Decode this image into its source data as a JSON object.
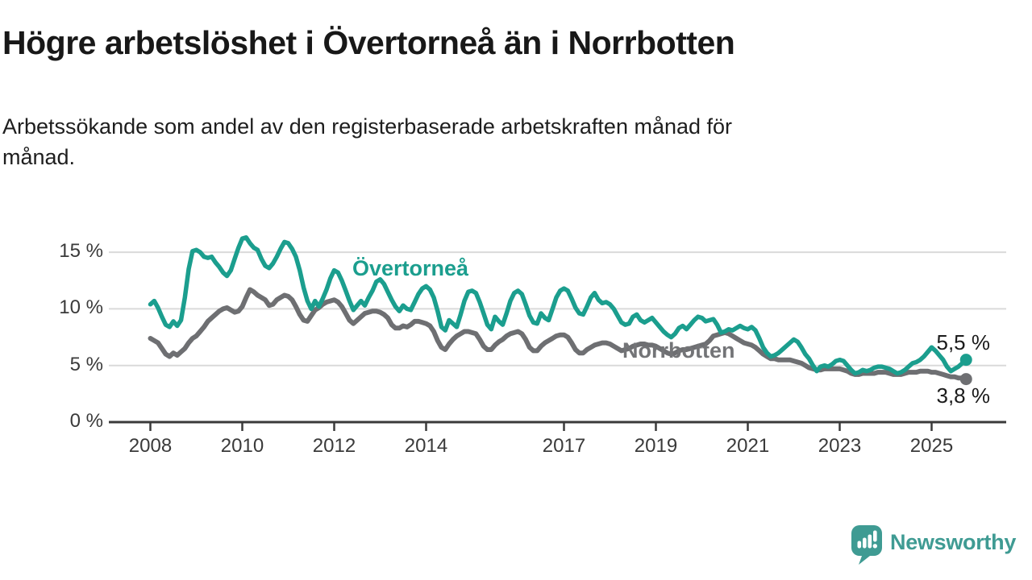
{
  "header": {
    "title": "Högre arbetslöshet i Övertorneå än i Norrbotten",
    "subtitle": "Arbetssökande som andel av den registerbaserade arbetskraften månad för månad.",
    "subtitle_lines": [
      "Arbetssökande som andel av den registerbaserade arbetskraften månad för",
      "månad."
    ]
  },
  "chart_data": {
    "type": "line",
    "unit": "%",
    "x_start_year": 2008,
    "x_resolution": "monthly",
    "ylim": [
      0,
      17.5
    ],
    "grid": "horizontal-only",
    "legend_position": "inline-labels",
    "colors": {
      "axis": "#3a3a3a",
      "grid": "#dadada"
    },
    "y_ticks": [
      {
        "value": 0,
        "label": "0 %"
      },
      {
        "value": 5,
        "label": "5 %"
      },
      {
        "value": 10,
        "label": "10 %"
      },
      {
        "value": 15,
        "label": "15 %"
      }
    ],
    "x_ticks": [
      {
        "value": 2008,
        "label": "2008"
      },
      {
        "value": 2010,
        "label": "2010"
      },
      {
        "value": 2012,
        "label": "2012"
      },
      {
        "value": 2014,
        "label": "2014"
      },
      {
        "value": 2017,
        "label": "2017"
      },
      {
        "value": 2019,
        "label": "2019"
      },
      {
        "value": 2021,
        "label": "2021"
      },
      {
        "value": 2023,
        "label": "2023"
      },
      {
        "value": 2025,
        "label": "2025"
      }
    ],
    "series": [
      {
        "name": "Övertorneå",
        "color": "#1b9e8e",
        "end_label": "5,5 %",
        "end_value": 5.5,
        "values": [
          10.4,
          10.7,
          10.1,
          9.3,
          8.6,
          8.4,
          8.9,
          8.5,
          9.0,
          11.0,
          13.5,
          15.1,
          15.2,
          15.0,
          14.6,
          14.5,
          14.6,
          14.1,
          13.7,
          13.2,
          12.9,
          13.4,
          14.4,
          15.4,
          16.2,
          16.3,
          15.8,
          15.4,
          15.2,
          14.4,
          13.8,
          13.6,
          14.0,
          14.6,
          15.3,
          15.9,
          15.8,
          15.3,
          14.6,
          13.4,
          11.9,
          10.7,
          10.0,
          10.7,
          10.2,
          10.9,
          11.7,
          12.7,
          13.4,
          13.2,
          12.5,
          11.6,
          10.7,
          9.9,
          10.3,
          10.7,
          10.3,
          11.0,
          11.6,
          12.4,
          12.6,
          12.2,
          11.5,
          10.8,
          10.2,
          9.8,
          10.3,
          10.0,
          9.9,
          10.6,
          11.3,
          11.8,
          12.0,
          11.7,
          11.0,
          9.8,
          8.4,
          8.1,
          9.0,
          8.7,
          8.4,
          9.5,
          10.7,
          11.5,
          11.6,
          11.4,
          10.6,
          9.6,
          8.6,
          8.2,
          9.3,
          8.9,
          8.6,
          9.6,
          10.7,
          11.4,
          11.6,
          11.3,
          10.4,
          9.4,
          8.8,
          8.7,
          9.6,
          9.2,
          9.0,
          10.0,
          11.0,
          11.6,
          11.8,
          11.6,
          10.9,
          10.1,
          9.6,
          9.5,
          10.2,
          11.0,
          11.4,
          10.8,
          10.5,
          10.6,
          10.4,
          10.0,
          9.4,
          8.8,
          8.6,
          8.7,
          9.3,
          9.5,
          9.0,
          8.8,
          9.0,
          9.2,
          8.8,
          8.4,
          8.0,
          7.7,
          7.5,
          7.8,
          8.3,
          8.5,
          8.2,
          8.6,
          9.0,
          9.3,
          9.2,
          8.9,
          9.0,
          9.1,
          8.6,
          7.9,
          8.0,
          8.2,
          8.1,
          8.3,
          8.5,
          8.3,
          8.2,
          8.4,
          8.1,
          7.4,
          6.6,
          6.1,
          5.8,
          5.9,
          6.1,
          6.4,
          6.7,
          7.0,
          7.3,
          7.1,
          6.6,
          6.0,
          5.6,
          5.0,
          4.5,
          4.9,
          5.0,
          4.9,
          5.1,
          5.4,
          5.5,
          5.4,
          5.0,
          4.6,
          4.3,
          4.4,
          4.6,
          4.5,
          4.6,
          4.8,
          4.9,
          4.9,
          4.8,
          4.7,
          4.5,
          4.3,
          4.4,
          4.6,
          4.9,
          5.2,
          5.3,
          5.5,
          5.8,
          6.2,
          6.6,
          6.3,
          5.9,
          5.5,
          4.9,
          4.5,
          4.7,
          4.9,
          5.2,
          5.5
        ]
      },
      {
        "name": "Norrbotten",
        "color": "#6e6f72",
        "end_label": "3,8 %",
        "end_value": 3.8,
        "values": [
          7.4,
          7.2,
          7.0,
          6.5,
          6.0,
          5.8,
          6.1,
          5.9,
          6.2,
          6.5,
          7.0,
          7.4,
          7.6,
          8.0,
          8.4,
          8.9,
          9.2,
          9.5,
          9.8,
          10.0,
          10.1,
          9.9,
          9.7,
          9.8,
          10.2,
          11.0,
          11.7,
          11.5,
          11.2,
          11.0,
          10.8,
          10.3,
          10.4,
          10.8,
          11.0,
          11.2,
          11.1,
          10.8,
          10.2,
          9.5,
          9.0,
          8.9,
          9.4,
          9.9,
          10.1,
          10.4,
          10.6,
          10.7,
          10.8,
          10.6,
          10.2,
          9.6,
          9.0,
          8.7,
          9.0,
          9.3,
          9.6,
          9.7,
          9.8,
          9.8,
          9.7,
          9.5,
          9.2,
          8.6,
          8.3,
          8.3,
          8.5,
          8.4,
          8.6,
          8.9,
          8.9,
          8.8,
          8.7,
          8.5,
          8.0,
          7.2,
          6.6,
          6.4,
          6.9,
          7.3,
          7.6,
          7.8,
          8.0,
          8.0,
          7.9,
          7.8,
          7.3,
          6.7,
          6.4,
          6.4,
          6.8,
          7.1,
          7.3,
          7.6,
          7.8,
          7.9,
          8.0,
          7.8,
          7.3,
          6.6,
          6.3,
          6.3,
          6.7,
          7.0,
          7.2,
          7.4,
          7.6,
          7.7,
          7.7,
          7.5,
          7.0,
          6.4,
          6.1,
          6.1,
          6.4,
          6.6,
          6.8,
          6.9,
          7.0,
          7.0,
          6.9,
          6.7,
          6.5,
          6.3,
          6.4,
          6.5,
          6.7,
          6.8,
          6.9,
          6.9,
          6.8,
          6.8,
          6.7,
          6.5,
          6.3,
          6.1,
          6.0,
          6.1,
          6.3,
          6.4,
          6.4,
          6.5,
          6.6,
          6.7,
          6.8,
          6.9,
          7.2,
          7.6,
          7.7,
          7.8,
          7.9,
          7.8,
          7.6,
          7.4,
          7.2,
          7.0,
          6.9,
          6.8,
          6.6,
          6.3,
          6.0,
          5.8,
          5.6,
          5.6,
          5.5,
          5.5,
          5.5,
          5.5,
          5.4,
          5.3,
          5.2,
          5.0,
          4.8,
          4.7,
          4.6,
          4.6,
          4.7,
          4.7,
          4.7,
          4.7,
          4.7,
          4.6,
          4.5,
          4.3,
          4.2,
          4.2,
          4.3,
          4.3,
          4.3,
          4.3,
          4.4,
          4.4,
          4.4,
          4.3,
          4.2,
          4.2,
          4.2,
          4.3,
          4.4,
          4.4,
          4.4,
          4.5,
          4.5,
          4.5,
          4.4,
          4.4,
          4.3,
          4.2,
          4.1,
          4.0,
          4.0,
          3.9,
          3.9,
          3.8
        ]
      }
    ]
  },
  "footer": {
    "brand": "Newsworthy",
    "brand_color": "#3f9b93"
  }
}
